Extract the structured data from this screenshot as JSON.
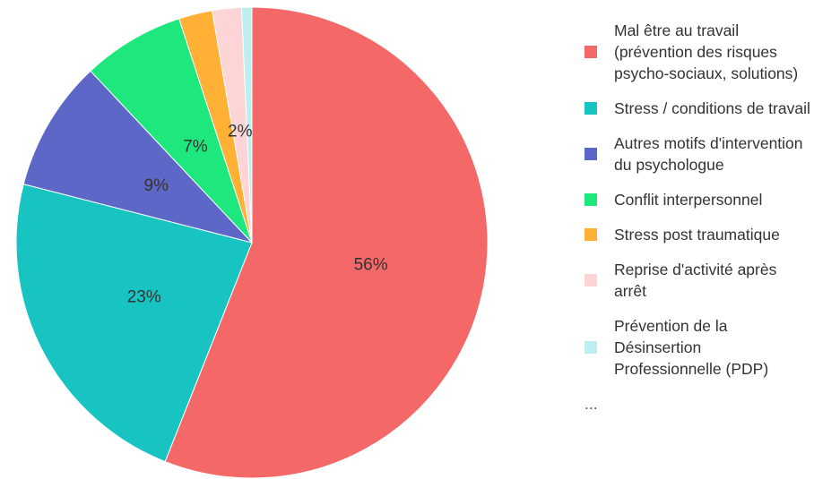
{
  "chart_data": {
    "type": "pie",
    "categories": [
      "Mal être au travail (prévention des risques psycho-sociaux, solutions)",
      "Stress / conditions de travail",
      "Autres motifs d'intervention du psychologue",
      "Conflit interpersonnel",
      "Stress post traumatique",
      "Reprise d'activité après arrêt",
      "Prévention de la Désinsertion Professionnelle (PDP)"
    ],
    "values": [
      56,
      23,
      9,
      7,
      2.3,
      2,
      0.7
    ],
    "value_labels": [
      "56%",
      "23%",
      "9%",
      "7%",
      null,
      "2%",
      null
    ],
    "colors": [
      "#f46868",
      "#18c4c2",
      "#5d67c8",
      "#1ee87d",
      "#ffb035",
      "#fdd5d6",
      "#bdeff0"
    ],
    "legend_overflow": "...",
    "legend": "right"
  }
}
